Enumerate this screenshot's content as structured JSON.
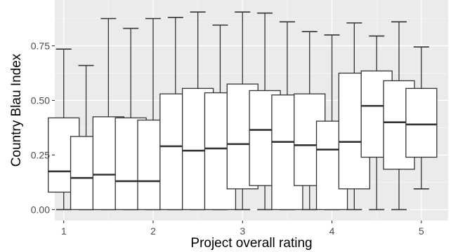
{
  "chart_data": {
    "type": "boxplot",
    "title": "",
    "xlabel": "Project overall rating",
    "ylabel": "Country Blau Index",
    "xlim": [
      0.9,
      5.3
    ],
    "ylim": [
      -0.05,
      0.96
    ],
    "x_ticks": [
      1,
      2,
      3,
      4,
      5
    ],
    "x_tick_labels": [
      "1",
      "2",
      "3",
      "4",
      "5"
    ],
    "y_ticks": [
      0.0,
      0.25,
      0.5,
      0.75
    ],
    "y_tick_labels": [
      "0.00",
      "0.25",
      "0.50",
      "0.75"
    ],
    "grid": true,
    "colors": {
      "panel": "#ebebeb",
      "grid_major": "#ffffff",
      "grid_minor": "#f5f5f5",
      "box_fill": "#ffffff",
      "box_stroke": "#333333"
    },
    "boxes": [
      {
        "x": 1.0,
        "min": 0.0,
        "q1": 0.08,
        "median": 0.175,
        "q3": 0.42,
        "max": 0.735
      },
      {
        "x": 1.25,
        "min": 0.0,
        "q1": 0.0,
        "median": 0.145,
        "q3": 0.335,
        "max": 0.66
      },
      {
        "x": 1.5,
        "min": 0.0,
        "q1": 0.0,
        "median": 0.16,
        "q3": 0.425,
        "max": 0.875
      },
      {
        "x": 1.75,
        "min": 0.0,
        "q1": 0.0,
        "median": 0.13,
        "q3": 0.42,
        "max": 0.83
      },
      {
        "x": 2.0,
        "min": 0.0,
        "q1": 0.0,
        "median": 0.13,
        "q3": 0.41,
        "max": 0.875
      },
      {
        "x": 2.25,
        "min": 0.0,
        "q1": 0.0,
        "median": 0.29,
        "q3": 0.53,
        "max": 0.88
      },
      {
        "x": 2.5,
        "min": 0.0,
        "q1": 0.0,
        "median": 0.27,
        "q3": 0.555,
        "max": 0.905
      },
      {
        "x": 2.75,
        "min": 0.0,
        "q1": 0.0,
        "median": 0.28,
        "q3": 0.535,
        "max": 0.845
      },
      {
        "x": 3.0,
        "min": 0.0,
        "q1": 0.095,
        "median": 0.3,
        "q3": 0.575,
        "max": 0.905
      },
      {
        "x": 3.25,
        "min": 0.0,
        "q1": 0.11,
        "median": 0.365,
        "q3": 0.545,
        "max": 0.9
      },
      {
        "x": 3.5,
        "min": 0.0,
        "q1": 0.0,
        "median": 0.31,
        "q3": 0.525,
        "max": 0.86
      },
      {
        "x": 3.75,
        "min": 0.0,
        "q1": 0.11,
        "median": 0.295,
        "q3": 0.53,
        "max": 0.815
      },
      {
        "x": 4.0,
        "min": 0.0,
        "q1": 0.0,
        "median": 0.275,
        "q3": 0.405,
        "max": 0.8
      },
      {
        "x": 4.25,
        "min": 0.0,
        "q1": 0.095,
        "median": 0.31,
        "q3": 0.625,
        "max": 0.855
      },
      {
        "x": 4.5,
        "min": 0.0,
        "q1": 0.24,
        "median": 0.475,
        "q3": 0.635,
        "max": 0.795
      },
      {
        "x": 4.75,
        "min": 0.0,
        "q1": 0.185,
        "median": 0.4,
        "q3": 0.59,
        "max": 0.86
      },
      {
        "x": 5.0,
        "min": 0.095,
        "q1": 0.24,
        "median": 0.39,
        "q3": 0.555,
        "max": 0.745
      }
    ]
  }
}
